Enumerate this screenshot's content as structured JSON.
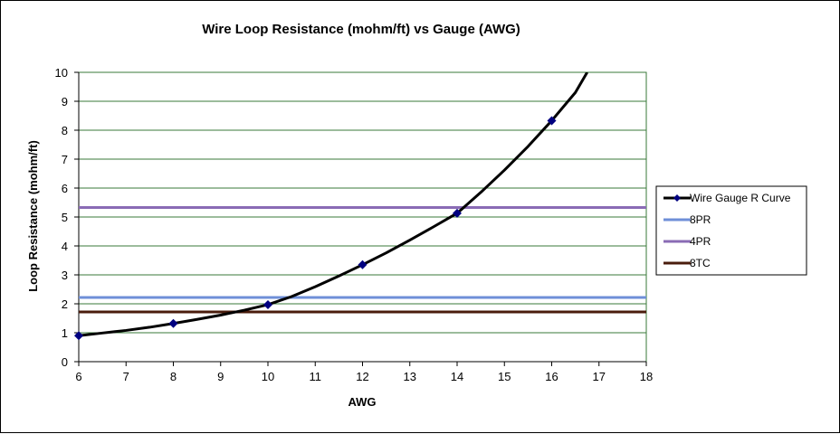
{
  "chart_data": {
    "type": "line",
    "title": "Wire Loop Resistance (mohm/ft)  vs Gauge (AWG)",
    "xlabel": "AWG",
    "ylabel": "Loop Resistance  (mohm/ft)",
    "xlim": [
      6,
      18
    ],
    "ylim": [
      0,
      10
    ],
    "xticks": [
      6,
      7,
      8,
      9,
      10,
      11,
      12,
      13,
      14,
      15,
      16,
      17,
      18
    ],
    "yticks": [
      0,
      1,
      2,
      3,
      4,
      5,
      6,
      7,
      8,
      9,
      10
    ],
    "grid": "horizontal",
    "legend_position": "right",
    "series": [
      {
        "name": "Wire Gauge R Curve",
        "kind": "curve-with-markers",
        "color": "#000000",
        "marker_color": "#000080",
        "x": [
          6,
          8,
          10,
          12,
          14,
          16
        ],
        "y": [
          0.9,
          1.32,
          1.97,
          3.35,
          5.13,
          8.33
        ],
        "curve_x": [
          6,
          6.5,
          7,
          7.5,
          8,
          8.5,
          9,
          9.5,
          10,
          10.5,
          11,
          11.5,
          12,
          12.5,
          13,
          13.5,
          14,
          14.5,
          15,
          15.5,
          16,
          16.5,
          16.75
        ],
        "curve_y": [
          0.9,
          0.99,
          1.08,
          1.19,
          1.32,
          1.46,
          1.61,
          1.78,
          1.97,
          2.25,
          2.59,
          2.96,
          3.35,
          3.76,
          4.2,
          4.66,
          5.13,
          5.85,
          6.62,
          7.44,
          8.33,
          9.3,
          10.0
        ]
      },
      {
        "name": "8PR",
        "kind": "hline",
        "color": "#6f8fd8",
        "y": 2.22
      },
      {
        "name": "4PR",
        "kind": "hline",
        "color": "#8a6bb5",
        "y": 5.33
      },
      {
        "name": "8TC",
        "kind": "hline",
        "color": "#4a1c0c",
        "y": 1.72
      }
    ]
  }
}
